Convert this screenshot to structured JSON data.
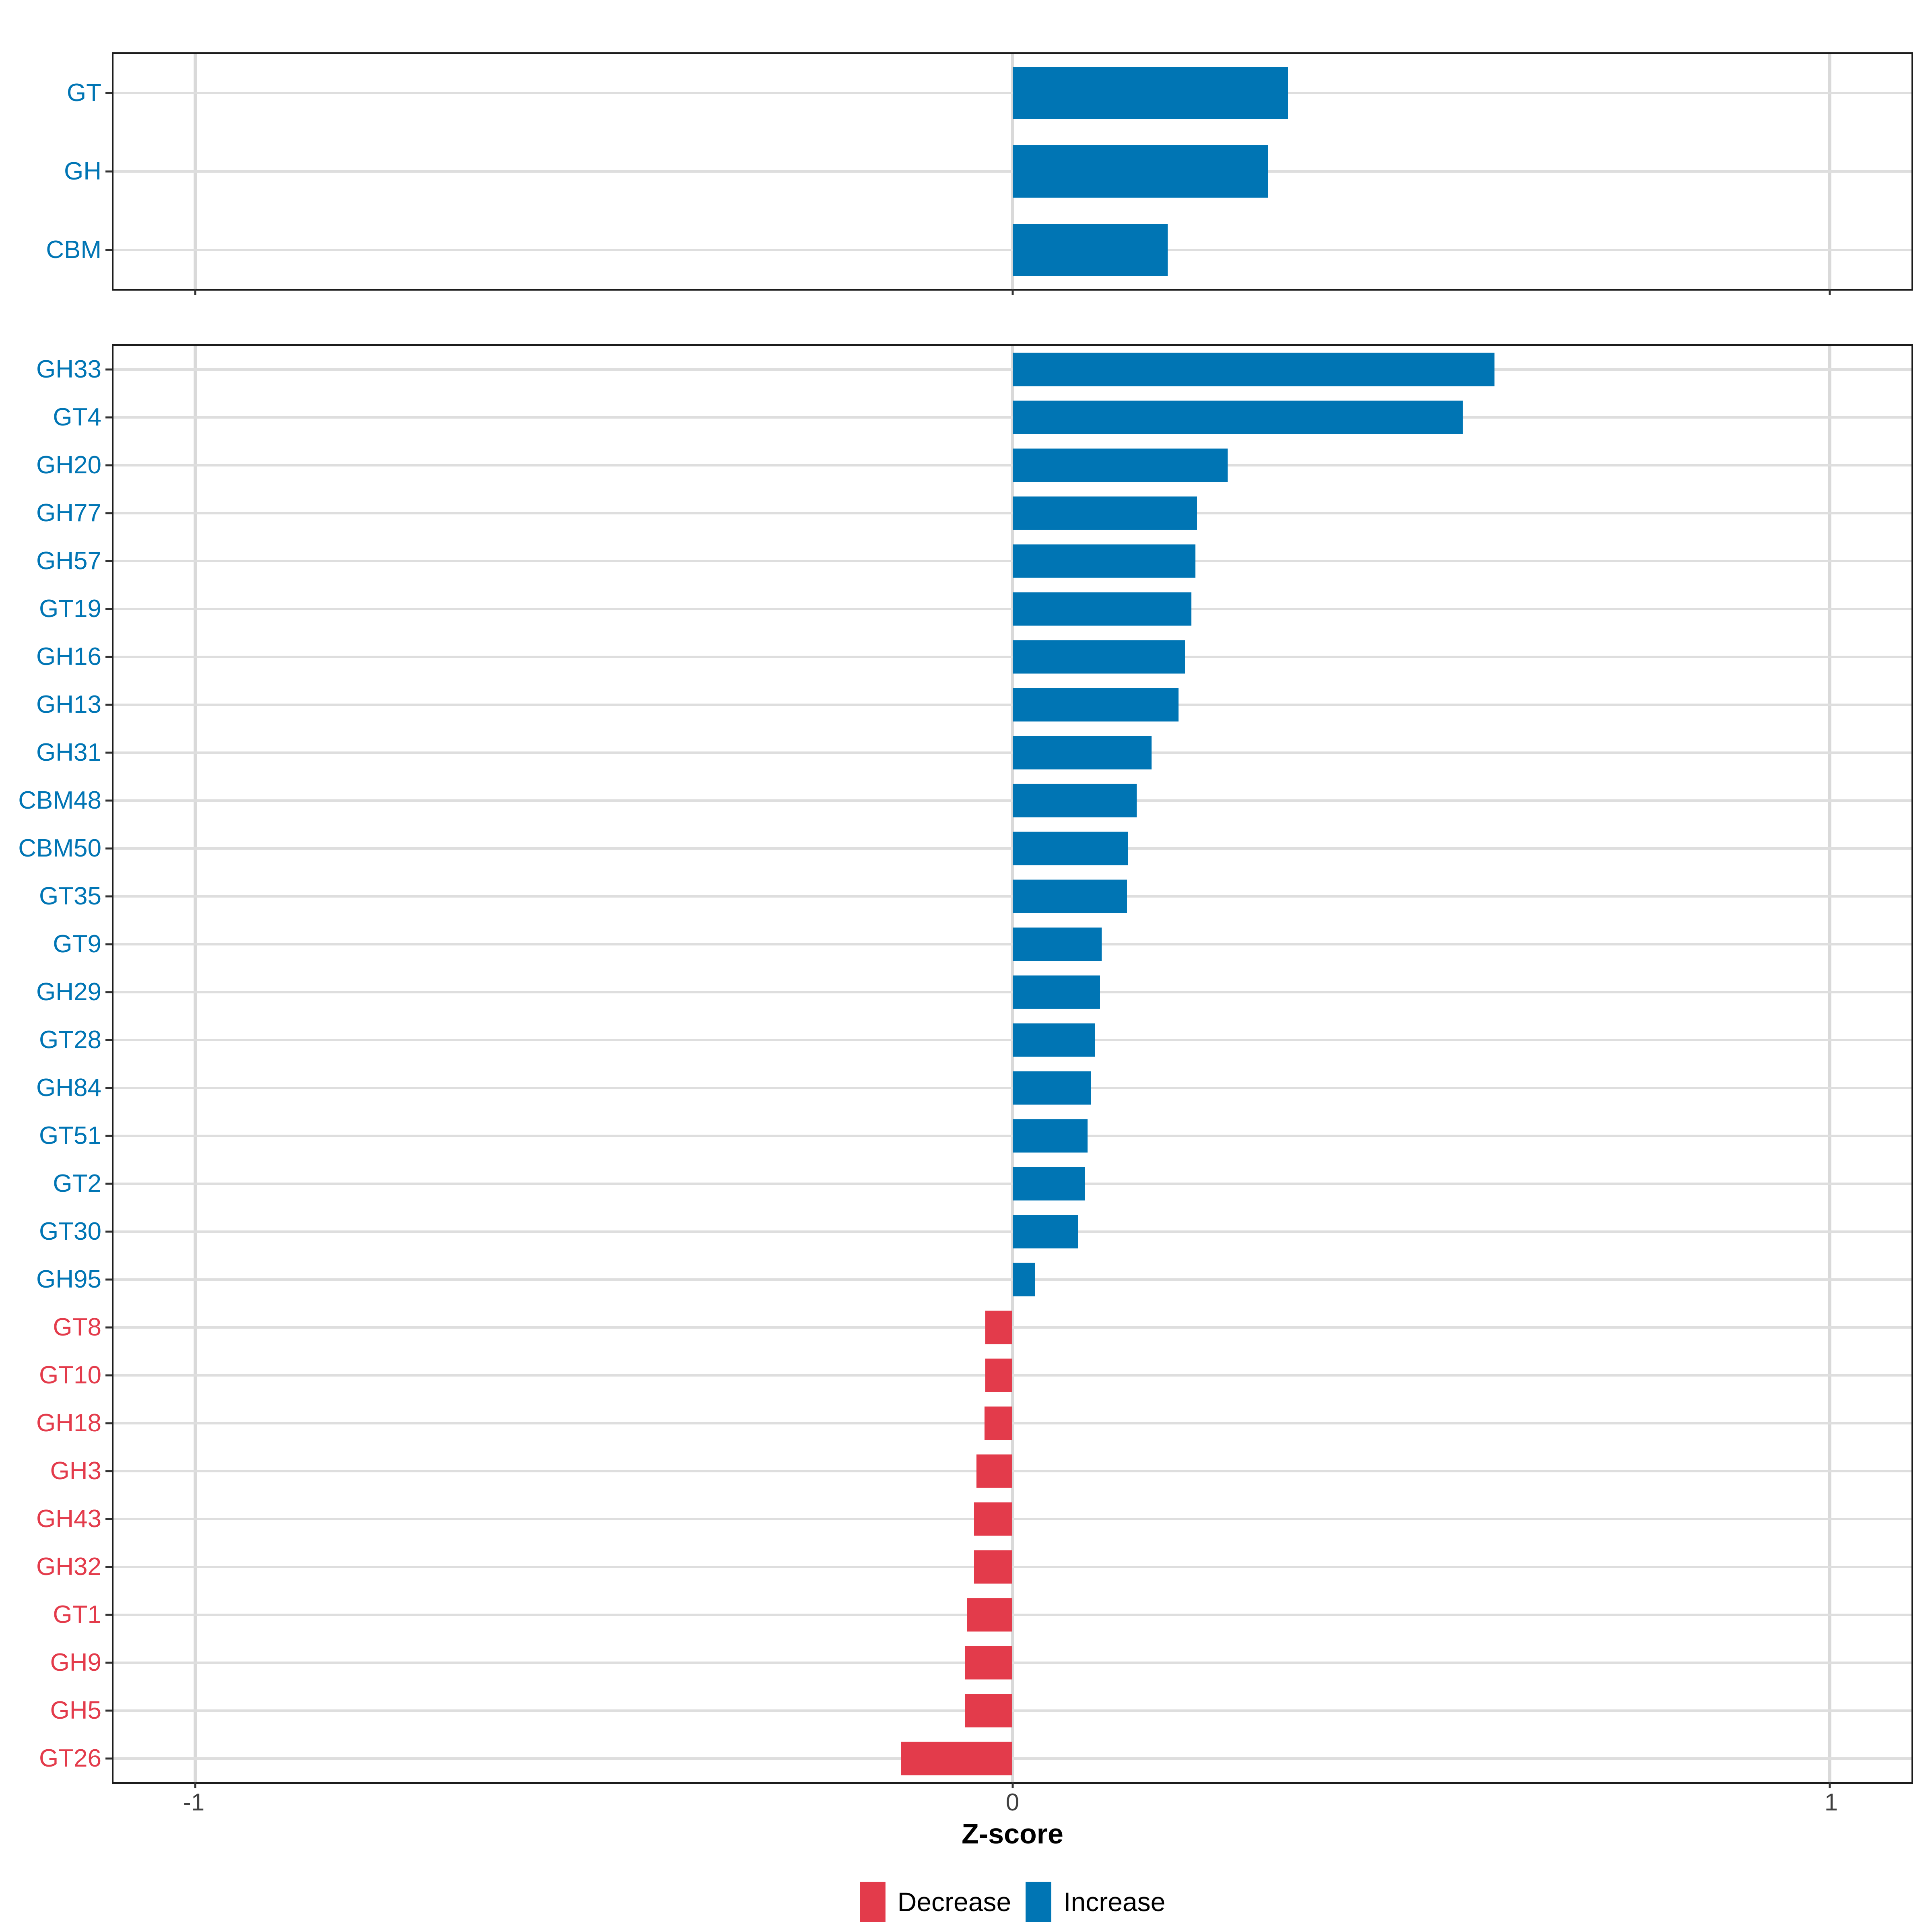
{
  "chart_data": {
    "type": "bar",
    "orientation": "horizontal",
    "title": "",
    "xlabel": "Z-score",
    "x_ticks": [
      "-1",
      "0",
      "1"
    ],
    "x_tick_values": [
      -1,
      0,
      1
    ],
    "xlim": [
      -1.1,
      1.1
    ],
    "grid": "major-only",
    "colors": {
      "increase": "#0075b4",
      "decrease": "#e33b4b",
      "gridline": "#d9d9d9",
      "tick_text": "#404040",
      "panel_border": "#1c1c1c"
    },
    "legend": {
      "position": "bottom",
      "entries": [
        {
          "key": "decrease",
          "label": "Decrease",
          "color": "#e33b4b"
        },
        {
          "key": "increase",
          "label": "Increase",
          "color": "#0075b4"
        }
      ]
    },
    "panels": [
      {
        "name": "enzyme-classes",
        "bars": [
          {
            "label": "GT",
            "value": 0.337,
            "direction": "increase"
          },
          {
            "label": "GH",
            "value": 0.313,
            "direction": "increase"
          },
          {
            "label": "CBM",
            "value": 0.19,
            "direction": "increase"
          }
        ]
      },
      {
        "name": "enzyme-families",
        "bars": [
          {
            "label": "GH33",
            "value": 0.59,
            "direction": "increase"
          },
          {
            "label": "GT4",
            "value": 0.551,
            "direction": "increase"
          },
          {
            "label": "GH20",
            "value": 0.263,
            "direction": "increase"
          },
          {
            "label": "GH77",
            "value": 0.226,
            "direction": "increase"
          },
          {
            "label": "GH57",
            "value": 0.224,
            "direction": "increase"
          },
          {
            "label": "GT19",
            "value": 0.219,
            "direction": "increase"
          },
          {
            "label": "GH16",
            "value": 0.211,
            "direction": "increase"
          },
          {
            "label": "GH13",
            "value": 0.203,
            "direction": "increase"
          },
          {
            "label": "GH31",
            "value": 0.17,
            "direction": "increase"
          },
          {
            "label": "CBM48",
            "value": 0.152,
            "direction": "increase"
          },
          {
            "label": "CBM50",
            "value": 0.141,
            "direction": "increase"
          },
          {
            "label": "GT35",
            "value": 0.14,
            "direction": "increase"
          },
          {
            "label": "GT9",
            "value": 0.109,
            "direction": "increase"
          },
          {
            "label": "GH29",
            "value": 0.107,
            "direction": "increase"
          },
          {
            "label": "GT28",
            "value": 0.101,
            "direction": "increase"
          },
          {
            "label": "GH84",
            "value": 0.096,
            "direction": "increase"
          },
          {
            "label": "GT51",
            "value": 0.092,
            "direction": "increase"
          },
          {
            "label": "GT2",
            "value": 0.089,
            "direction": "increase"
          },
          {
            "label": "GT30",
            "value": 0.08,
            "direction": "increase"
          },
          {
            "label": "GH95",
            "value": 0.028,
            "direction": "increase"
          },
          {
            "label": "GT8",
            "value": -0.033,
            "direction": "decrease"
          },
          {
            "label": "GT10",
            "value": -0.033,
            "direction": "decrease"
          },
          {
            "label": "GH18",
            "value": -0.034,
            "direction": "decrease"
          },
          {
            "label": "GH3",
            "value": -0.044,
            "direction": "decrease"
          },
          {
            "label": "GH43",
            "value": -0.047,
            "direction": "decrease"
          },
          {
            "label": "GH32",
            "value": -0.047,
            "direction": "decrease"
          },
          {
            "label": "GT1",
            "value": -0.056,
            "direction": "decrease"
          },
          {
            "label": "GH9",
            "value": -0.058,
            "direction": "decrease"
          },
          {
            "label": "GH5",
            "value": -0.058,
            "direction": "decrease"
          },
          {
            "label": "GT26",
            "value": -0.136,
            "direction": "decrease"
          }
        ]
      }
    ]
  }
}
